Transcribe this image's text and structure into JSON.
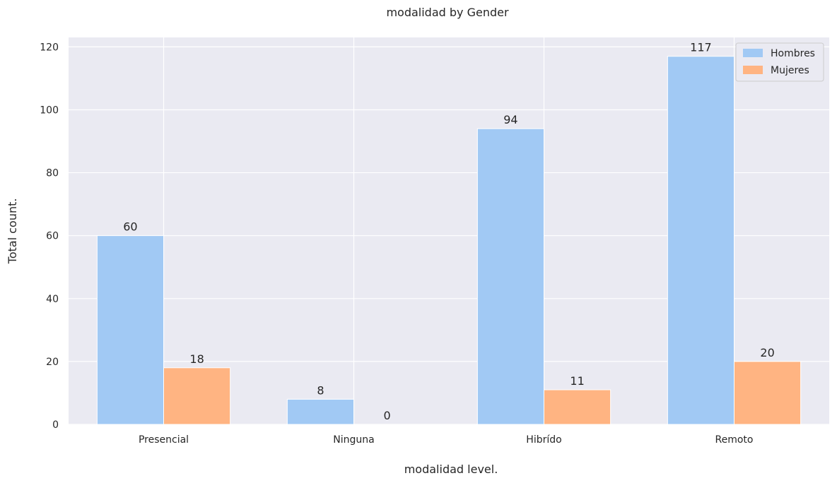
{
  "chart_data": {
    "type": "bar",
    "title": "modalidad by Gender",
    "xlabel": "modalidad level.",
    "ylabel": "Total count.",
    "categories": [
      "Presencial",
      "Ninguna",
      "Hibrído",
      "Remoto"
    ],
    "series": [
      {
        "name": "Hombres",
        "values": [
          60,
          8,
          94,
          117
        ],
        "color": "#a1c9f4"
      },
      {
        "name": "Mujeres",
        "values": [
          18,
          0,
          11,
          20
        ],
        "color": "#ffb482"
      }
    ],
    "ylim": [
      0,
      123
    ],
    "yticks": [
      0,
      20,
      40,
      60,
      80,
      100,
      120
    ],
    "grid": true,
    "legend_position": "top-right",
    "background_color": "#eaeaf2"
  }
}
